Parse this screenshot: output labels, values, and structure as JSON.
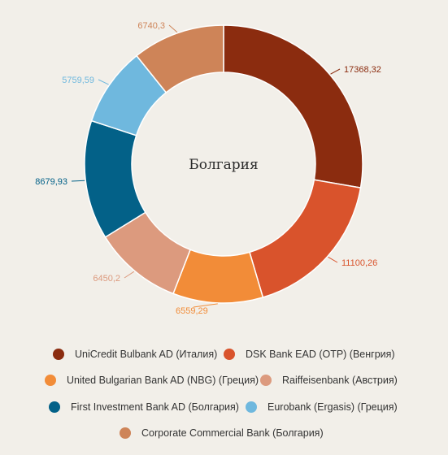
{
  "chart_data": {
    "type": "pie",
    "title": "Болгария",
    "series": [
      {
        "name": "UniCredit Bulbank AD (Италия)",
        "value": 17368.32,
        "label": "17368,32",
        "color": "#8b2c0f"
      },
      {
        "name": "DSK Bank EAD (OTP) (Венгрия)",
        "value": 11100.26,
        "label": "11100,26",
        "color": "#d9532c"
      },
      {
        "name": "United Bulgarian Bank AD (NBG) (Греция)",
        "value": 6559.29,
        "label": "6559,29",
        "color": "#f28c38"
      },
      {
        "name": "Raiffeisenbank (Австрия)",
        "value": 6450.2,
        "label": "6450,2",
        "color": "#dc9a7e"
      },
      {
        "name": "First Investment Bank AD (Болгария)",
        "value": 8679.93,
        "label": "8679,93",
        "color": "#036188"
      },
      {
        "name": "Eurobank (Ergasis) (Греция)",
        "value": 5759.59,
        "label": "5759,59",
        "color": "#6fb8de"
      },
      {
        "name": "Corporate Commercial Bank (Болгария)",
        "value": 6740.3,
        "label": "6740,3",
        "color": "#ce8458"
      }
    ],
    "legend_position": "bottom"
  }
}
